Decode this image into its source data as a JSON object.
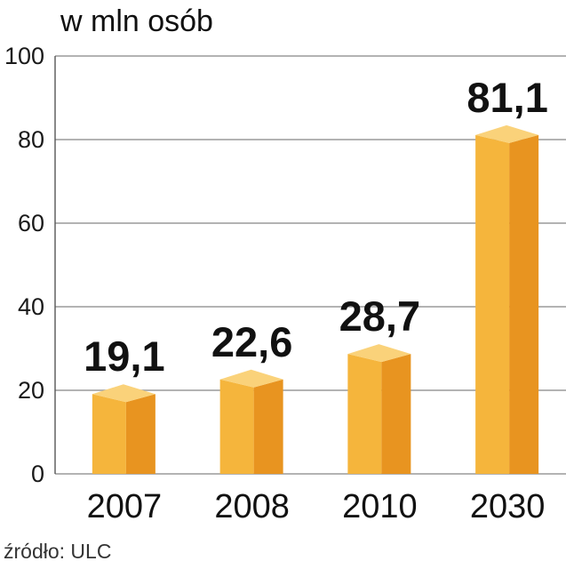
{
  "chart_data": {
    "type": "bar",
    "ylabel": "w mln osób",
    "categories": [
      "2007",
      "2008",
      "2010",
      "2030"
    ],
    "values": [
      19.1,
      22.6,
      28.7,
      81.1
    ],
    "value_labels": [
      "19,1",
      "22,6",
      "28,7",
      "81,1"
    ],
    "ylim": [
      0,
      100
    ],
    "yticks": [
      0,
      20,
      40,
      60,
      80,
      100
    ],
    "grid": true,
    "source": "źródło: ULC",
    "colors": {
      "bar_front": "#f5b53c",
      "bar_side": "#e89420",
      "bar_top": "#fad27a",
      "highlight_label": "#c8102e",
      "grid": "#9a9a9a"
    },
    "highlight_index": 3
  }
}
